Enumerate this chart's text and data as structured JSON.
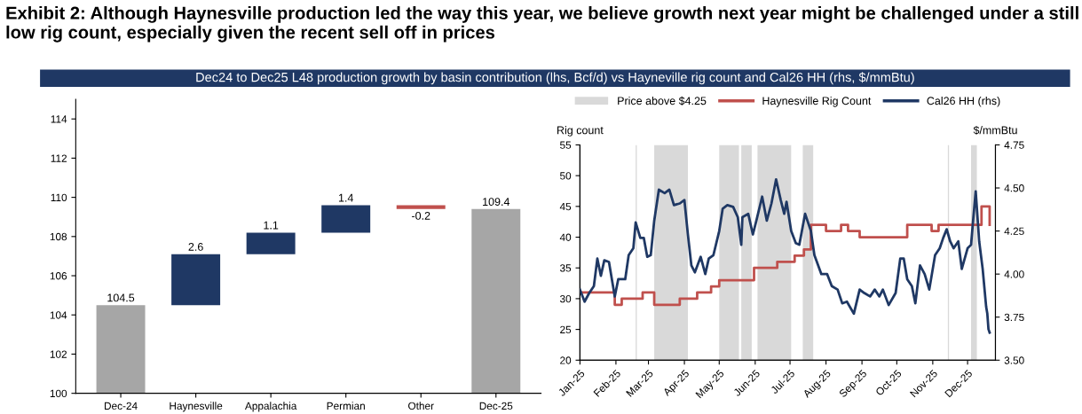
{
  "chart_data": [
    {
      "type": "bar",
      "title": "Exhibit 2: Although Haynesville production led the way this year, we believe growth next year might be challenged under a still low rig count, especially given the recent sell off in prices",
      "subtitle": "Dec24 to Dec25 L48 production growth by basin contribution (lhs, Bcf/d) vs Hayneville rig count and Cal26 HH (rhs, $/mmBtu)",
      "categories": [
        "Dec-24",
        "Haynesville",
        "Appalachia",
        "Permian",
        "Other",
        "Dec-25"
      ],
      "values": [
        104.5,
        2.6,
        1.1,
        1.4,
        -0.2,
        109.4
      ],
      "base": [
        0,
        104.5,
        107.1,
        108.2,
        109.6,
        0
      ],
      "colors": [
        "#a6a6a6",
        "#1f3864",
        "#1f3864",
        "#1f3864",
        "#c0504d",
        "#a6a6a6"
      ],
      "ylim": [
        100,
        115
      ],
      "yticks": [
        100,
        102,
        104,
        106,
        108,
        110,
        112,
        114
      ],
      "data_labels": true,
      "grid": false
    },
    {
      "type": "line",
      "ylabel": "Rig count",
      "y2label": "$/mmBtu",
      "legend": "top",
      "grid": false,
      "xlim": [
        "2025-01-01",
        "2025-12-25"
      ],
      "xticks": [
        {
          "value": "2025-01-01",
          "label": "Jan-25"
        },
        {
          "value": "2025-02-01",
          "label": "Feb-25"
        },
        {
          "value": "2025-03-01",
          "label": "Mar-25"
        },
        {
          "value": "2025-04-01",
          "label": "Apr-25"
        },
        {
          "value": "2025-05-01",
          "label": "May-25"
        },
        {
          "value": "2025-06-01",
          "label": "Jun-25"
        },
        {
          "value": "2025-07-01",
          "label": "Jul-25"
        },
        {
          "value": "2025-08-01",
          "label": "Aug-25"
        },
        {
          "value": "2025-09-01",
          "label": "Sep-25"
        },
        {
          "value": "2025-10-01",
          "label": "Oct-25"
        },
        {
          "value": "2025-11-01",
          "label": "Nov-25"
        },
        {
          "value": "2025-12-01",
          "label": "Dec-25"
        }
      ],
      "ylim": [
        20,
        55
      ],
      "yticks": [
        20,
        25,
        30,
        35,
        40,
        45,
        50,
        55
      ],
      "y2lim": [
        3.5,
        4.75
      ],
      "y2ticks": [
        {
          "value": 3.5,
          "label": "3.50"
        },
        {
          "value": 3.75,
          "label": "3.75"
        },
        {
          "value": 4.0,
          "label": "4.00"
        },
        {
          "value": 4.25,
          "label": "4.25"
        },
        {
          "value": 4.5,
          "label": "4.50"
        },
        {
          "value": 4.75,
          "label": "4.75"
        }
      ],
      "bands": [
        {
          "axis": "x",
          "from": "2025-02-18",
          "to": "2025-02-19",
          "label": "Price above $4.25",
          "color": "#d9d9d9"
        },
        {
          "axis": "x",
          "from": "2025-03-06",
          "to": "2025-04-04",
          "color": "#d9d9d9"
        },
        {
          "axis": "x",
          "from": "2025-05-01",
          "to": "2025-05-18",
          "color": "#d9d9d9"
        },
        {
          "axis": "x",
          "from": "2025-05-20",
          "to": "2025-05-29",
          "color": "#d9d9d9"
        },
        {
          "axis": "x",
          "from": "2025-06-03",
          "to": "2025-07-02",
          "color": "#d9d9d9"
        },
        {
          "axis": "x",
          "from": "2025-07-12",
          "to": "2025-07-21",
          "color": "#d9d9d9"
        },
        {
          "axis": "x",
          "from": "2025-11-14",
          "to": "2025-11-15",
          "color": "#d9d9d9"
        },
        {
          "axis": "x",
          "from": "2025-12-04",
          "to": "2025-12-09",
          "color": "#d9d9d9"
        }
      ],
      "series": [
        {
          "name": "Haynesville Rig Count",
          "type": "step",
          "color": "#c0504d",
          "x": [
            "2025-01-01",
            "2025-01-31",
            "2025-02-06",
            "2025-02-24",
            "2025-03-06",
            "2025-03-28",
            "2025-04-12",
            "2025-04-24",
            "2025-05-01",
            "2025-05-31",
            "2025-06-20",
            "2025-07-05",
            "2025-07-13",
            "2025-07-19",
            "2025-08-01",
            "2025-08-14",
            "2025-08-20",
            "2025-08-30",
            "2025-10-10",
            "2025-10-31",
            "2025-11-06",
            "2025-12-13",
            "2025-12-20"
          ],
          "values": [
            31,
            29,
            30,
            31,
            29,
            30,
            31,
            32,
            33,
            35,
            36,
            37,
            38,
            42,
            41,
            42,
            41,
            40,
            42,
            41,
            42,
            45,
            42
          ]
        },
        {
          "name": "Cal26 HH (rhs)",
          "type": "line",
          "axis": "y2",
          "color": "#1f3864",
          "x": [
            "2025-01-01",
            "2025-01-05",
            "2025-01-09",
            "2025-01-13",
            "2025-01-16",
            "2025-01-19",
            "2025-01-22",
            "2025-01-26",
            "2025-01-31",
            "2025-02-03",
            "2025-02-09",
            "2025-02-12",
            "2025-02-16",
            "2025-02-18",
            "2025-02-22",
            "2025-02-25",
            "2025-02-28",
            "2025-03-03",
            "2025-03-06",
            "2025-03-10",
            "2025-03-15",
            "2025-03-19",
            "2025-03-23",
            "2025-03-28",
            "2025-04-01",
            "2025-04-04",
            "2025-04-07",
            "2025-04-10",
            "2025-04-15",
            "2025-04-19",
            "2025-04-22",
            "2025-04-26",
            "2025-05-01",
            "2025-05-04",
            "2025-05-08",
            "2025-05-13",
            "2025-05-17",
            "2025-05-20",
            "2025-05-21",
            "2025-05-26",
            "2025-05-30",
            "2025-06-02",
            "2025-06-07",
            "2025-06-11",
            "2025-06-15",
            "2025-06-19",
            "2025-06-23",
            "2025-06-26",
            "2025-06-28",
            "2025-07-02",
            "2025-07-06",
            "2025-07-09",
            "2025-07-14",
            "2025-07-19",
            "2025-07-22",
            "2025-07-28",
            "2025-08-02",
            "2025-08-06",
            "2025-08-11",
            "2025-08-15",
            "2025-08-19",
            "2025-08-25",
            "2025-08-30",
            "2025-09-03",
            "2025-09-08",
            "2025-09-12",
            "2025-09-16",
            "2025-09-19",
            "2025-09-24",
            "2025-09-30",
            "2025-10-04",
            "2025-10-07",
            "2025-10-10",
            "2025-10-14",
            "2025-10-17",
            "2025-10-21",
            "2025-10-25",
            "2025-10-29",
            "2025-11-03",
            "2025-11-07",
            "2025-11-10",
            "2025-11-13",
            "2025-11-16",
            "2025-11-19",
            "2025-11-23",
            "2025-11-26",
            "2025-12-01",
            "2025-12-04",
            "2025-12-06",
            "2025-12-08",
            "2025-12-11",
            "2025-12-14",
            "2025-12-17",
            "2025-12-18",
            "2025-12-19",
            "2025-12-20"
          ],
          "values": [
            3.91,
            3.84,
            3.89,
            3.93,
            4.09,
            3.99,
            4.08,
            4.07,
            3.87,
            3.97,
            3.97,
            4.11,
            4.15,
            4.3,
            4.21,
            4.21,
            4.1,
            4.11,
            4.31,
            4.49,
            4.47,
            4.49,
            4.4,
            4.41,
            4.43,
            4.23,
            4.05,
            4.01,
            4.1,
            4.0,
            4.09,
            4.11,
            4.25,
            4.38,
            4.4,
            4.39,
            4.33,
            4.17,
            4.33,
            4.35,
            4.23,
            4.31,
            4.45,
            4.31,
            4.41,
            4.55,
            4.43,
            4.35,
            4.42,
            4.25,
            4.18,
            4.17,
            4.35,
            4.25,
            4.11,
            4.0,
            4.0,
            3.93,
            3.91,
            3.83,
            3.84,
            3.77,
            3.91,
            3.89,
            3.87,
            3.91,
            3.87,
            3.91,
            3.82,
            3.89,
            4.09,
            4.09,
            3.97,
            3.93,
            3.83,
            4.05,
            4.0,
            3.91,
            4.11,
            4.15,
            4.21,
            4.26,
            4.19,
            4.15,
            4.19,
            4.03,
            4.15,
            4.17,
            4.33,
            4.48,
            4.19,
            4.03,
            3.81,
            3.77,
            3.68,
            3.66
          ]
        }
      ]
    }
  ]
}
